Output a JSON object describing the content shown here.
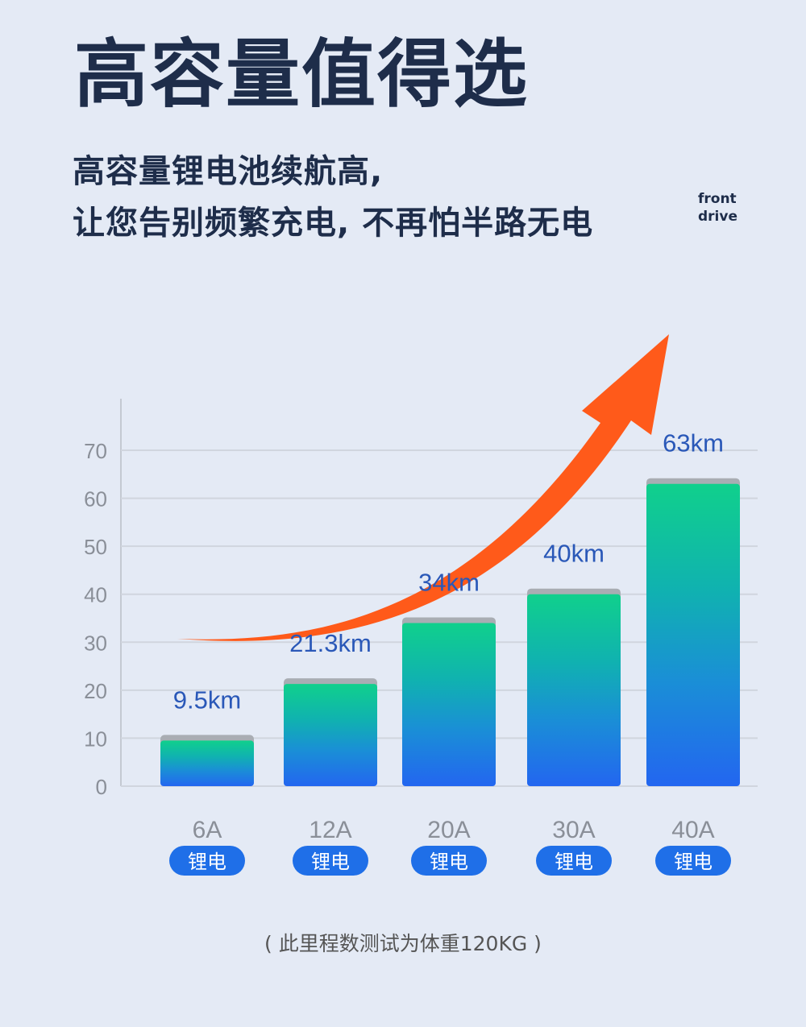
{
  "header": {
    "title": "高容量值得选",
    "subtitle_line1": "高容量锂电池续航高,",
    "subtitle_line2": "让您告别频繁充电, 不再怕半路无电",
    "brand_line1": "front",
    "brand_line2": "drive"
  },
  "chart_data": {
    "type": "bar",
    "categories": [
      "6A",
      "12A",
      "20A",
      "30A",
      "40A"
    ],
    "category_tags": [
      "锂电",
      "锂电",
      "锂电",
      "锂电",
      "锂电"
    ],
    "values": [
      9.5,
      21.3,
      34,
      40,
      63
    ],
    "data_labels": [
      "9.5km",
      "21.3km",
      "34km",
      "40km",
      "63km"
    ],
    "ylim": [
      0,
      70
    ],
    "yticks": [
      "0",
      "10",
      "20",
      "30",
      "40",
      "50",
      "60",
      "70"
    ],
    "grid": true,
    "colors": {
      "bar_top": "#10d08c",
      "bar_bottom": "#2366f0",
      "label": "#2a58b8",
      "tag": "#1f6fe8",
      "arrow": "#ff5a1a"
    }
  },
  "footnote": "( 此里程数测试为体重120KG )"
}
